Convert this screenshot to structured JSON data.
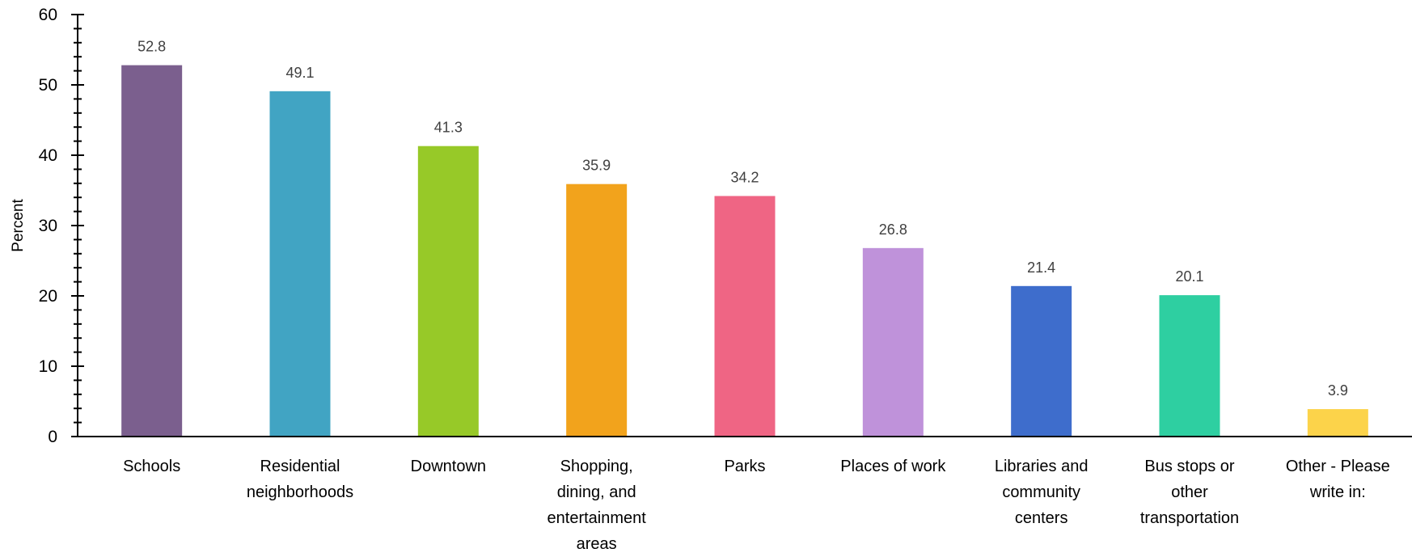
{
  "chart_data": {
    "type": "bar",
    "title": "",
    "xlabel": "",
    "ylabel": "Percent",
    "ylim": [
      0,
      60
    ],
    "y_ticks": [
      0,
      10,
      20,
      30,
      40,
      50,
      60
    ],
    "y_minor_ticks_per_major": 5,
    "grid": false,
    "legend": "none",
    "categories": [
      [
        "Schools"
      ],
      [
        "Residential",
        "neighborhoods"
      ],
      [
        "Downtown"
      ],
      [
        "Shopping,",
        "dining, and",
        "entertainment",
        "areas"
      ],
      [
        "Parks"
      ],
      [
        "Places of work"
      ],
      [
        "Libraries and",
        "community",
        "centers"
      ],
      [
        "Bus stops or",
        "other",
        "transportation"
      ],
      [
        "Other - Please",
        "write in:"
      ]
    ],
    "values": [
      52.8,
      49.1,
      41.3,
      35.9,
      34.2,
      26.8,
      21.4,
      20.1,
      3.9
    ],
    "colors": [
      "#7b5f8e",
      "#41a4c3",
      "#97c928",
      "#f2a31c",
      "#ef6584",
      "#bf92da",
      "#3e6dcc",
      "#2ecfa1",
      "#fcd34a"
    ]
  }
}
